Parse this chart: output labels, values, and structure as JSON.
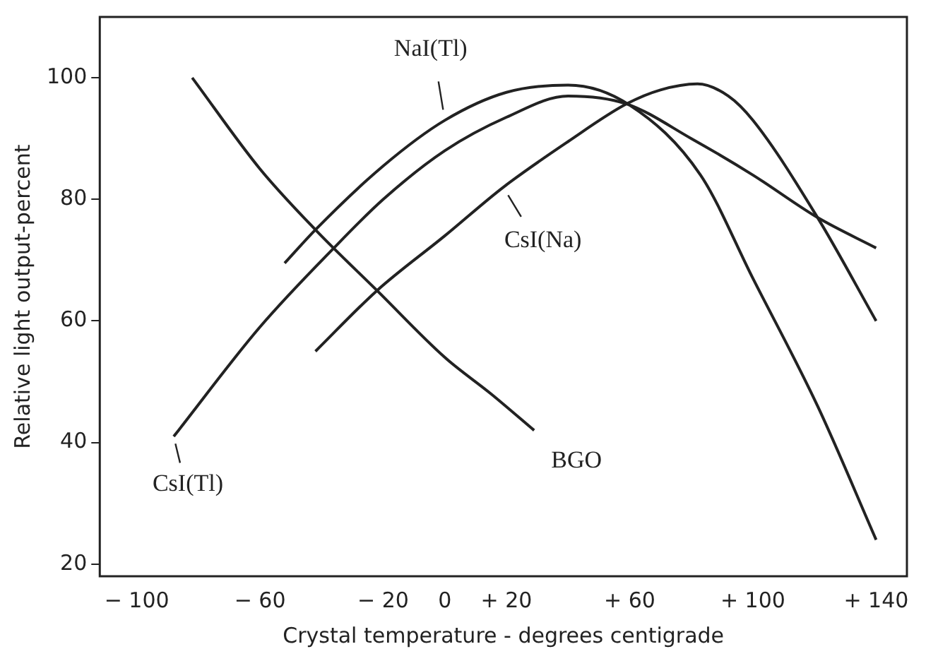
{
  "chart_data": {
    "type": "line",
    "xlabel": "Crystal temperature - degrees centigrade",
    "ylabel": "Relative light output-percent",
    "xlim": [
      -112,
      150
    ],
    "ylim": [
      18,
      110
    ],
    "xticks": [
      {
        "value": -100,
        "label": "− 100"
      },
      {
        "value": -60,
        "label": "− 60"
      },
      {
        "value": -20,
        "label": "− 20"
      },
      0,
      {
        "value": 20,
        "label": "+ 20"
      },
      {
        "value": 60,
        "label": "+ 60"
      },
      {
        "value": 100,
        "label": "+ 100"
      },
      {
        "value": 140,
        "label": "+ 140"
      }
    ],
    "yticks": [
      20,
      40,
      60,
      80,
      100
    ],
    "grid": false,
    "legend": false,
    "marker": "none",
    "line_style": "solid",
    "series": [
      {
        "color": "#222222",
        "x": [
          -82,
          -60,
          -42,
          -22,
          0,
          15,
          29
        ],
        "values": [
          100,
          85,
          75,
          65,
          54,
          48,
          42
        ]
      },
      {
        "color": "#222222",
        "x": [
          -52,
          -42,
          -20,
          0,
          20,
          40,
          60,
          83,
          100,
          121,
          140
        ],
        "values": [
          69.5,
          75,
          85.5,
          93,
          97.6,
          98.8,
          95.5,
          84,
          67,
          46,
          24
        ]
      },
      {
        "color": "#222222",
        "x": [
          -88,
          -60,
          -36,
          -20,
          0,
          20,
          40,
          59,
          80,
          100,
          121,
          140
        ],
        "values": [
          41,
          59,
          72,
          80,
          88,
          93.5,
          97,
          95.7,
          90,
          84,
          77,
          72
        ]
      },
      {
        "color": "#222222",
        "x": [
          -42,
          -22,
          0,
          19,
          40,
          59,
          70,
          82,
          92,
          100,
          121,
          140
        ],
        "values": [
          55,
          65,
          74,
          82,
          89.5,
          95.7,
          98,
          99,
          97,
          93,
          77,
          60
        ]
      }
    ],
    "annotations": [
      {
        "text": "NaI(Tl)",
        "x": 0,
        "y": 93
      },
      {
        "text": "CsI(Na)",
        "x": 19,
        "y": 82
      },
      {
        "text": "CsI(Tl)",
        "x": -88,
        "y": 41
      },
      {
        "text": "BGO",
        "x": 29,
        "y": 42
      }
    ]
  }
}
